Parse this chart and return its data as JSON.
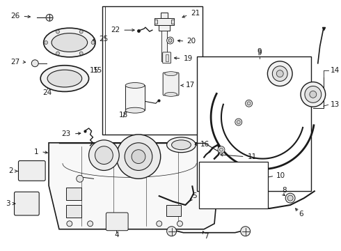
{
  "bg_color": "#ffffff",
  "line_color": "#1a1a1a",
  "fig_width": 4.9,
  "fig_height": 3.6,
  "dpi": 100,
  "label_fontsize": 7.5,
  "label_fontsize_sm": 6.5
}
